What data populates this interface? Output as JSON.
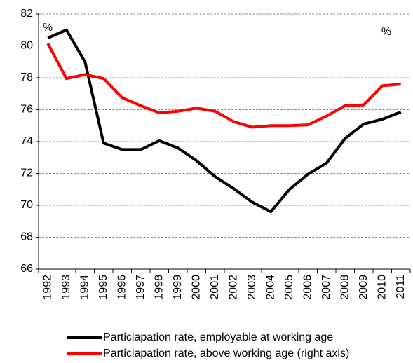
{
  "chart_data": {
    "type": "line",
    "annotations": [
      "%",
      "%"
    ],
    "categories": [
      "1992",
      "1993",
      "1994",
      "1995",
      "1996",
      "1997",
      "1998",
      "1999",
      "2000",
      "2001",
      "2002",
      "2003",
      "2004",
      "2005",
      "2006",
      "2007",
      "2008",
      "2009",
      "2010",
      "2011"
    ],
    "series": [
      {
        "name": "Particiapation rate, employable at working age",
        "color": "#000000",
        "values": [
          80.5,
          81.0,
          79.0,
          73.9,
          73.5,
          73.5,
          74.05,
          73.6,
          72.8,
          71.8,
          71.05,
          70.2,
          69.6,
          71.0,
          71.95,
          72.65,
          74.2,
          75.1,
          75.4,
          75.85
        ]
      },
      {
        "name": "Particiapation rate, above working age (right axis)",
        "color": "#ff0000",
        "values": [
          80.15,
          77.95,
          78.2,
          77.95,
          76.75,
          76.25,
          75.8,
          75.9,
          76.1,
          75.9,
          75.25,
          74.9,
          75.0,
          75.0,
          75.05,
          75.6,
          76.25,
          76.3,
          77.5,
          77.6
        ]
      }
    ],
    "ylim": [
      66,
      82
    ],
    "yticks": [
      66,
      68,
      70,
      72,
      74,
      76,
      78,
      80,
      82
    ],
    "grid": true
  }
}
